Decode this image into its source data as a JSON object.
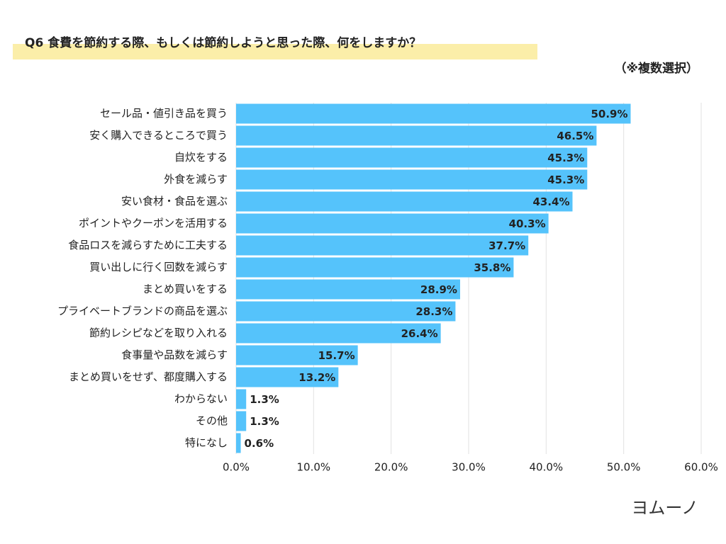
{
  "chart_data": {
    "type": "barh",
    "title": "Q6 食費を節約する際、もしくは節約しようと思った際、何をしますか？",
    "subtitle": "（※複数選択）",
    "categories": [
      "セール品・値引き品を買う",
      "安く購入できるところで買う",
      "自炊をする",
      "外食を減らす",
      "安い食材・食品を選ぶ",
      "ポイントやクーポンを活用する",
      "食品ロスを減らすために工夫する",
      "買い出しに行く回数を減らす",
      "まとめ買いをする",
      "プライベートブランドの商品を選ぶ",
      "節約レシピなどを取り入れる",
      "食事量や品数を減らす",
      "まとめ買いをせず、都度購入する",
      "わからない",
      "その他",
      "特になし"
    ],
    "values": [
      50.9,
      46.5,
      45.3,
      45.3,
      43.4,
      40.3,
      37.7,
      35.8,
      28.9,
      28.3,
      26.4,
      15.7,
      13.2,
      1.3,
      1.3,
      0.6
    ],
    "value_labels": [
      "50.9%",
      "46.5%",
      "45.3%",
      "45.3%",
      "43.4%",
      "40.3%",
      "37.7%",
      "35.8%",
      "28.9%",
      "28.3%",
      "26.4%",
      "15.7%",
      "13.2%",
      "1.3%",
      "1.3%",
      "0.6%"
    ],
    "color": "#55c3fb",
    "xlim": [
      0,
      60
    ],
    "xticks": [
      {
        "value": 0,
        "label": "0.0%"
      },
      {
        "value": 10,
        "label": "10.0%"
      },
      {
        "value": 20,
        "label": "20.0%"
      },
      {
        "value": 30,
        "label": "30.0%"
      },
      {
        "value": 40,
        "label": "40.0%"
      },
      {
        "value": 50,
        "label": "50.0%"
      },
      {
        "value": 60,
        "label": "60.0%"
      }
    ],
    "grid": true,
    "logo": "ヨムーノ"
  }
}
